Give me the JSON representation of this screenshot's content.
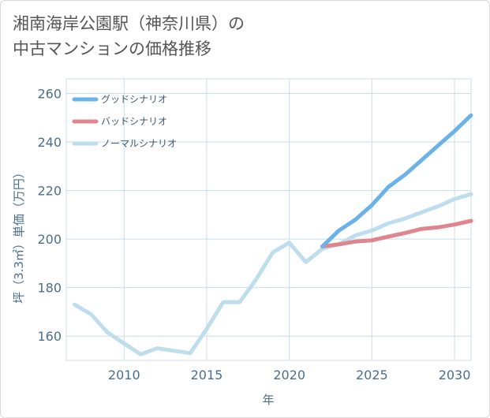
{
  "title": {
    "line1": "湘南海岸公園駅（神奈川県）の",
    "line2": "中古マンションの価格推移"
  },
  "chart_data": {
    "type": "line",
    "title": "湘南海岸公園駅（神奈川県）の中古マンションの価格推移",
    "xlabel": "年",
    "ylabel": "坪（3.3㎡）単価（万円）",
    "xlim": [
      2006.5,
      2031
    ],
    "ylim": [
      150,
      266
    ],
    "x_ticks": [
      2010,
      2015,
      2020,
      2025,
      2030
    ],
    "y_ticks": [
      160,
      180,
      200,
      220,
      240,
      260
    ],
    "grid": true,
    "legend_position": "top-left",
    "series": [
      {
        "name": "グッドシナリオ",
        "color": "#6bb2e8",
        "x": [
          2022,
          2023,
          2024,
          2025,
          2026,
          2027,
          2028,
          2029,
          2030,
          2031
        ],
        "values": [
          197,
          203.5,
          208,
          214,
          221.5,
          226.5,
          232.5,
          238.5,
          244.5,
          251
        ]
      },
      {
        "name": "バッドシナリオ",
        "color": "#e0848e",
        "x": [
          2022,
          2023,
          2024,
          2025,
          2026,
          2027,
          2028,
          2029,
          2030,
          2031
        ],
        "values": [
          197,
          197.8,
          199,
          199.5,
          201,
          202.5,
          204.2,
          204.8,
          206,
          207.5
        ]
      },
      {
        "name": "ノーマルシナリオ",
        "color": "#bfdeed",
        "x": [
          2007,
          2008,
          2009,
          2010,
          2011,
          2012,
          2013,
          2014,
          2015,
          2016,
          2017,
          2018,
          2019,
          2020,
          2021,
          2022,
          2023,
          2024,
          2025,
          2026,
          2027,
          2028,
          2029,
          2030,
          2031
        ],
        "values": [
          173,
          169,
          161.5,
          157,
          152.5,
          155,
          154,
          153,
          163,
          174,
          174,
          183.5,
          194.5,
          198.5,
          190.5,
          196,
          198,
          201.5,
          203.5,
          206.5,
          208.5,
          211,
          213.5,
          216.5,
          218.5
        ]
      }
    ]
  }
}
